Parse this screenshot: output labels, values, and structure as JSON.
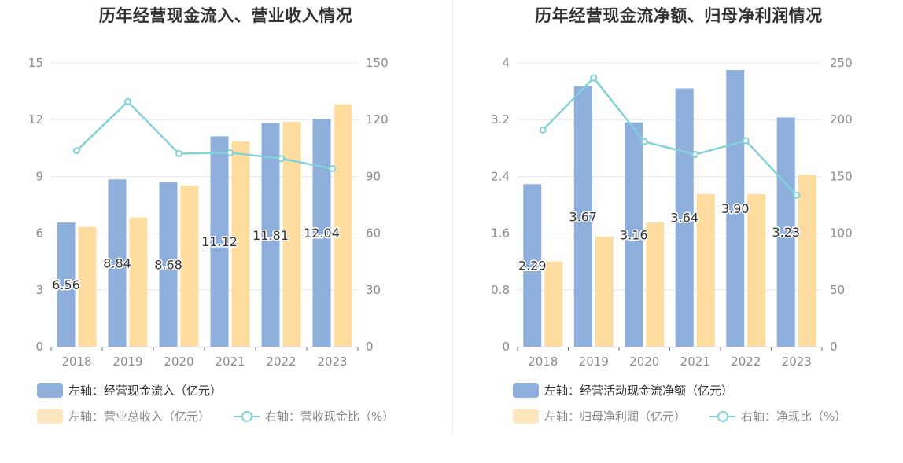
{
  "colors": {
    "left_bar": "#8eaedc",
    "right_bar": "#fedc9f",
    "line": "#82d2d8",
    "axis_text": "#8a8a8a",
    "grid": "#e3e7f3"
  },
  "chart_data": [
    {
      "type": "bar",
      "title": "历年经营现金流入、营业收入情况",
      "categories": [
        "2018",
        "2019",
        "2020",
        "2021",
        "2022",
        "2023"
      ],
      "y_left": {
        "ticks": [
          "0",
          "3",
          "6",
          "9",
          "12",
          "15"
        ],
        "range": [
          0,
          15
        ]
      },
      "y_right": {
        "ticks": [
          "0",
          "30",
          "60",
          "90",
          "120",
          "150"
        ],
        "range": [
          0,
          150
        ]
      },
      "series": [
        {
          "name": "左轴：经营现金流入（亿元）",
          "type": "bar",
          "axis": "left",
          "values": [
            6.56,
            8.84,
            8.68,
            11.12,
            11.81,
            12.04
          ],
          "labels": [
            "6.56",
            "8.84",
            "8.68",
            "11.12",
            "11.81",
            "12.04"
          ]
        },
        {
          "name": "左轴：营业总收入（亿元）",
          "type": "bar",
          "axis": "left",
          "values": [
            6.33,
            6.83,
            8.51,
            10.85,
            11.88,
            12.8
          ]
        },
        {
          "name": "右轴：营收现金比（%）",
          "type": "line",
          "axis": "right",
          "values": [
            103.6,
            129.5,
            102.0,
            102.5,
            99.4,
            94.1
          ]
        }
      ],
      "grid": true,
      "legend_position": "bottom-left"
    },
    {
      "type": "bar",
      "title": "历年经营现金流净额、归母净利润情况",
      "categories": [
        "2018",
        "2019",
        "2020",
        "2021",
        "2022",
        "2023"
      ],
      "y_left": {
        "ticks": [
          "0",
          "0.8",
          "1.6",
          "2.4",
          "3.2",
          "4"
        ],
        "range": [
          0,
          4
        ]
      },
      "y_right": {
        "ticks": [
          "0",
          "50",
          "100",
          "150",
          "200",
          "250"
        ],
        "range": [
          0,
          250
        ]
      },
      "series": [
        {
          "name": "左轴：经营活动现金流净额（亿元）",
          "type": "bar",
          "axis": "left",
          "values": [
            2.29,
            3.67,
            3.16,
            3.64,
            3.9,
            3.23
          ],
          "labels": [
            "2.29",
            "3.67",
            "3.16",
            "3.64",
            "3.90",
            "3.23"
          ]
        },
        {
          "name": "左轴：归母净利润（亿元）",
          "type": "bar",
          "axis": "left",
          "values": [
            1.2,
            1.55,
            1.75,
            2.15,
            2.15,
            2.42
          ]
        },
        {
          "name": "右轴：净现比（%）",
          "type": "line",
          "axis": "right",
          "values": [
            190.8,
            236.8,
            180.6,
            169.3,
            181.4,
            133.5
          ]
        }
      ],
      "grid": true,
      "legend_position": "bottom-left"
    }
  ]
}
